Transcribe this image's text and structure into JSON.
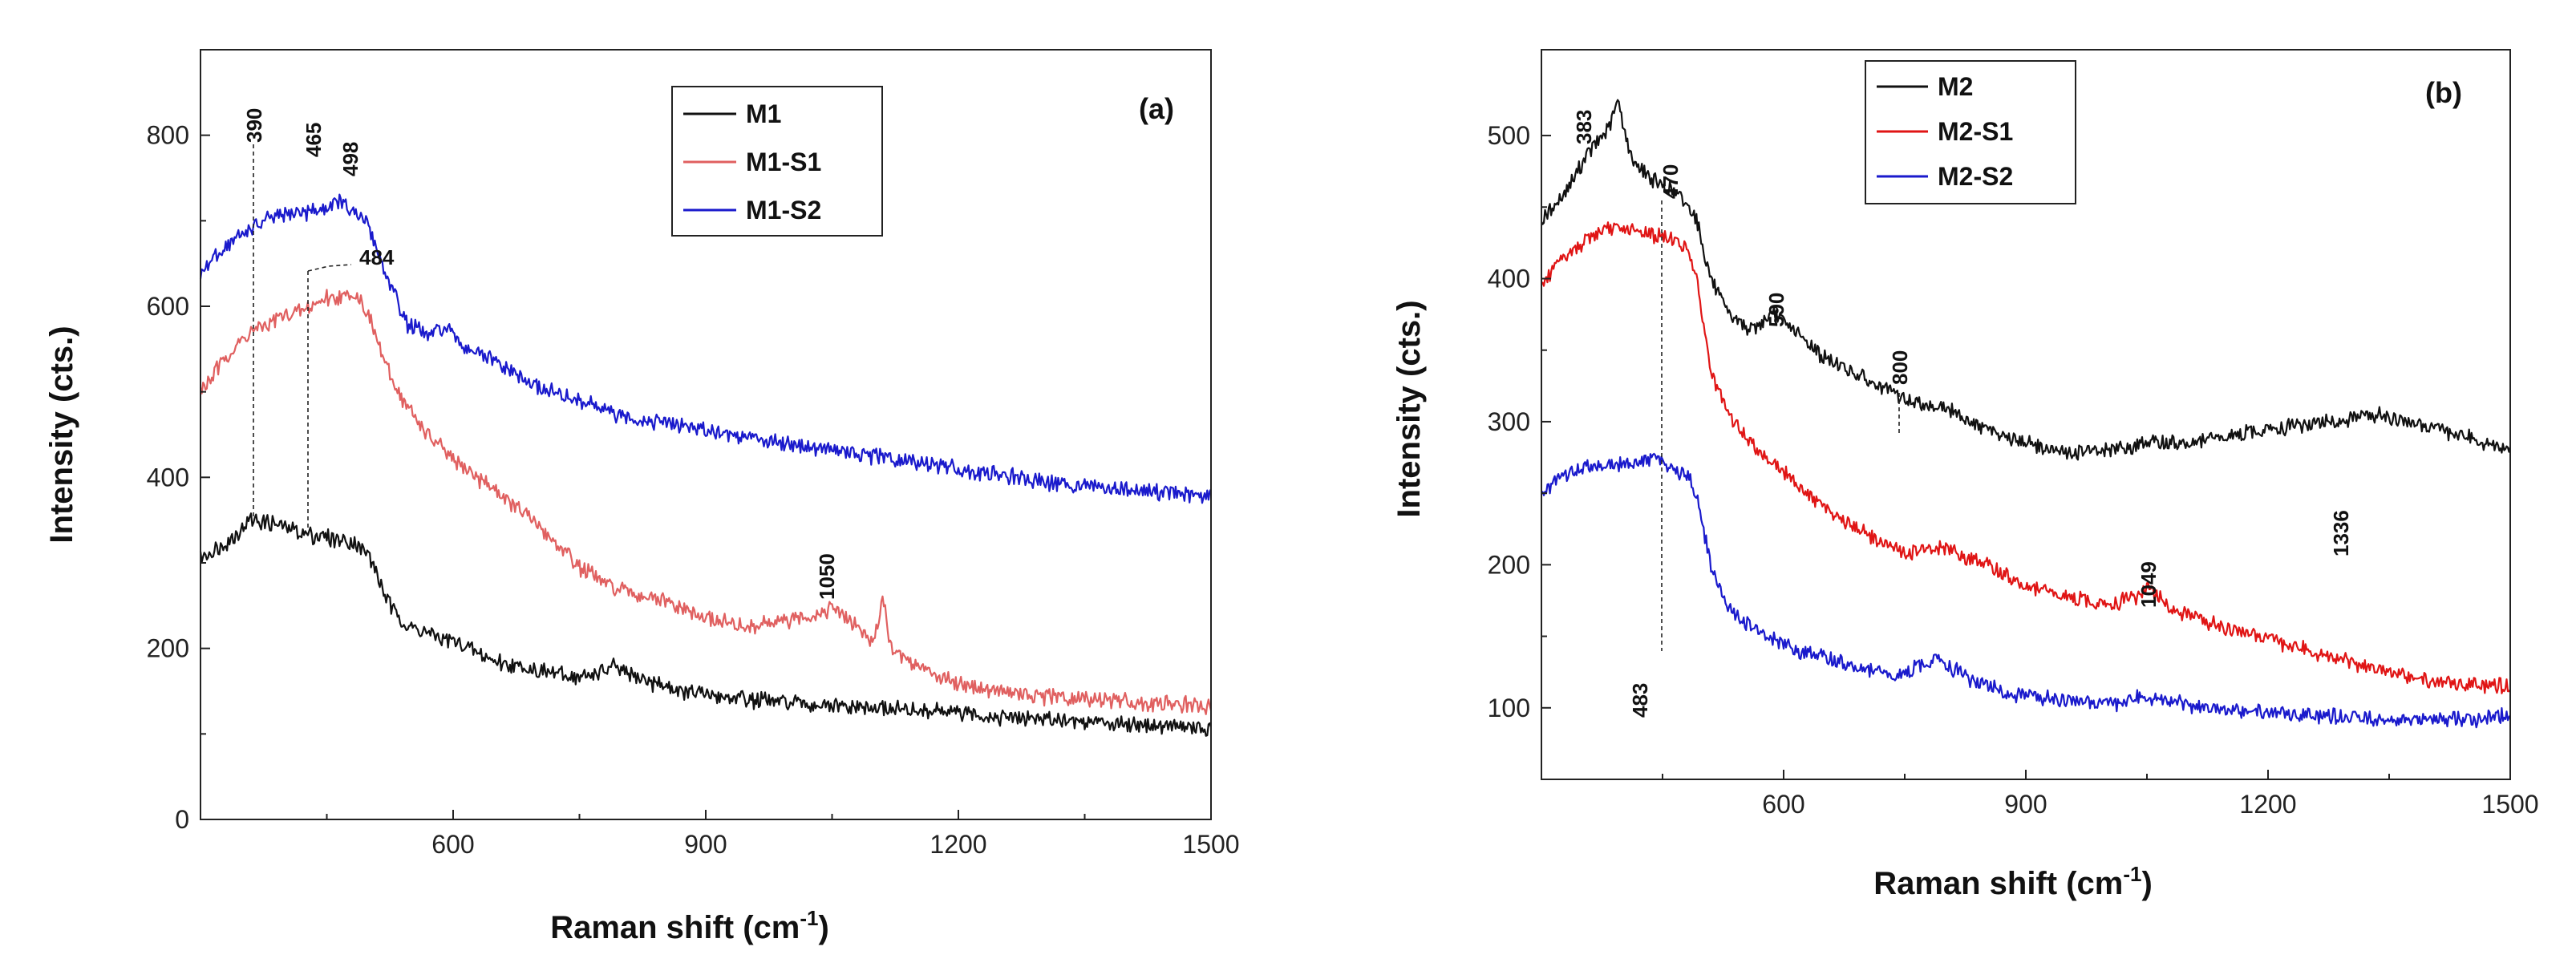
{
  "colors": {
    "black": "#111111",
    "red": "#e06060",
    "blue": "#1a1acc",
    "red_b": "#e01515"
  },
  "chart_data": [
    {
      "type": "line",
      "panel_label": "(a)",
      "xlabel": "Raman shift (cm",
      "xlabel_sup": "-1",
      "xlabel_close": ")",
      "ylabel": "Intensity (cts.)",
      "xlim": [
        300,
        1500
      ],
      "ylim": [
        0,
        900
      ],
      "x_ticks": [
        600,
        900,
        1200,
        1500
      ],
      "y_ticks": [
        0,
        200,
        400,
        600,
        800
      ],
      "series": [
        {
          "name": "M1",
          "color": "#111111",
          "points": [
            [
              300,
              305
            ],
            [
              340,
              330
            ],
            [
              360,
              352
            ],
            [
              390,
              345
            ],
            [
              420,
              335
            ],
            [
              450,
              330
            ],
            [
              480,
              325
            ],
            [
              500,
              310
            ],
            [
              510,
              285
            ],
            [
              525,
              250
            ],
            [
              545,
              225
            ],
            [
              580,
              215
            ],
            [
              620,
              200
            ],
            [
              650,
              185
            ],
            [
              700,
              175
            ],
            [
              750,
              165
            ],
            [
              790,
              178
            ],
            [
              820,
              165
            ],
            [
              870,
              150
            ],
            [
              950,
              140
            ],
            [
              1050,
              132
            ],
            [
              1150,
              128
            ],
            [
              1250,
              120
            ],
            [
              1350,
              115
            ],
            [
              1450,
              110
            ],
            [
              1500,
              106
            ]
          ]
        },
        {
          "name": "M1-S1",
          "color": "#e06060",
          "points": [
            [
              300,
              500
            ],
            [
              330,
              540
            ],
            [
              360,
              570
            ],
            [
              390,
              585
            ],
            [
              420,
              595
            ],
            [
              450,
              610
            ],
            [
              470,
              612
            ],
            [
              484,
              615
            ],
            [
              495,
              600
            ],
            [
              505,
              575
            ],
            [
              520,
              530
            ],
            [
              540,
              490
            ],
            [
              570,
              450
            ],
            [
              600,
              420
            ],
            [
              650,
              385
            ],
            [
              700,
              345
            ],
            [
              750,
              295
            ],
            [
              790,
              270
            ],
            [
              850,
              255
            ],
            [
              900,
              235
            ],
            [
              950,
              225
            ],
            [
              1000,
              232
            ],
            [
              1030,
              240
            ],
            [
              1050,
              248
            ],
            [
              1075,
              230
            ],
            [
              1100,
              205
            ],
            [
              1110,
              262
            ],
            [
              1120,
              200
            ],
            [
              1160,
              175
            ],
            [
              1200,
              160
            ],
            [
              1250,
              150
            ],
            [
              1300,
              144
            ],
            [
              1400,
              138
            ],
            [
              1500,
              132
            ]
          ]
        },
        {
          "name": "M1-S2",
          "color": "#1a1acc",
          "points": [
            [
              300,
              638
            ],
            [
              330,
              670
            ],
            [
              360,
              692
            ],
            [
              390,
              705
            ],
            [
              420,
              710
            ],
            [
              445,
              712
            ],
            [
              465,
              725
            ],
            [
              480,
              708
            ],
            [
              498,
              700
            ],
            [
              510,
              665
            ],
            [
              525,
              625
            ],
            [
              545,
              580
            ],
            [
              570,
              565
            ],
            [
              590,
              575
            ],
            [
              610,
              555
            ],
            [
              650,
              535
            ],
            [
              700,
              505
            ],
            [
              750,
              490
            ],
            [
              800,
              470
            ],
            [
              850,
              465
            ],
            [
              900,
              455
            ],
            [
              1000,
              440
            ],
            [
              1100,
              425
            ],
            [
              1200,
              410
            ],
            [
              1300,
              395
            ],
            [
              1400,
              385
            ],
            [
              1500,
              378
            ]
          ]
        }
      ],
      "legend": [
        "M1",
        "M1-S1",
        "M1-S2"
      ],
      "annotations": [
        "390",
        "465",
        "498",
        "484",
        "1050"
      ]
    },
    {
      "type": "line",
      "panel_label": "(b)",
      "xlabel": "Raman shift (cm",
      "xlabel_sup": "-1",
      "xlabel_close": ")",
      "ylabel": "Intensity (cts.)",
      "xlim": [
        300,
        1500
      ],
      "ylim": [
        50,
        560
      ],
      "x_ticks": [
        600,
        900,
        1200,
        1500
      ],
      "y_ticks": [
        100,
        200,
        300,
        400,
        500
      ],
      "series": [
        {
          "name": "M2",
          "color": "#111111",
          "points": [
            [
              300,
              440
            ],
            [
              330,
              460
            ],
            [
              355,
              485
            ],
            [
              383,
              505
            ],
            [
              395,
              525
            ],
            [
              410,
              485
            ],
            [
              440,
              468
            ],
            [
              470,
              458
            ],
            [
              490,
              445
            ],
            [
              510,
              400
            ],
            [
              530,
              375
            ],
            [
              560,
              365
            ],
            [
              590,
              375
            ],
            [
              620,
              360
            ],
            [
              650,
              345
            ],
            [
              700,
              330
            ],
            [
              750,
              315
            ],
            [
              800,
              310
            ],
            [
              850,
              295
            ],
            [
              900,
              285
            ],
            [
              950,
              278
            ],
            [
              1000,
              280
            ],
            [
              1050,
              285
            ],
            [
              1100,
              285
            ],
            [
              1150,
              290
            ],
            [
              1200,
              295
            ],
            [
              1250,
              298
            ],
            [
              1300,
              302
            ],
            [
              1336,
              305
            ],
            [
              1380,
              298
            ],
            [
              1430,
              292
            ],
            [
              1500,
              280
            ]
          ]
        },
        {
          "name": "M2-S1",
          "color": "#e01515",
          "points": [
            [
              300,
              395
            ],
            [
              330,
              415
            ],
            [
              360,
              430
            ],
            [
              390,
              435
            ],
            [
              430,
              432
            ],
            [
              460,
              428
            ],
            [
              483,
              420
            ],
            [
              495,
              390
            ],
            [
              510,
              335
            ],
            [
              530,
              305
            ],
            [
              560,
              285
            ],
            [
              600,
              265
            ],
            [
              650,
              240
            ],
            [
              700,
              222
            ],
            [
              750,
              208
            ],
            [
              800,
              212
            ],
            [
              850,
              200
            ],
            [
              900,
              185
            ],
            [
              950,
              178
            ],
            [
              1000,
              172
            ],
            [
              1040,
              178
            ],
            [
              1049,
              185
            ],
            [
              1075,
              172
            ],
            [
              1100,
              165
            ],
            [
              1150,
              155
            ],
            [
              1200,
              148
            ],
            [
              1300,
              132
            ],
            [
              1400,
              118
            ],
            [
              1500,
              115
            ]
          ]
        },
        {
          "name": "M2-S2",
          "color": "#1a1acc",
          "points": [
            [
              300,
              250
            ],
            [
              330,
              262
            ],
            [
              360,
              270
            ],
            [
              400,
              270
            ],
            [
              440,
              275
            ],
            [
              470,
              265
            ],
            [
              483,
              262
            ],
            [
              495,
              240
            ],
            [
              510,
              200
            ],
            [
              530,
              170
            ],
            [
              570,
              152
            ],
            [
              620,
              140
            ],
            [
              680,
              130
            ],
            [
              740,
              122
            ],
            [
              790,
              135
            ],
            [
              830,
              120
            ],
            [
              880,
              110
            ],
            [
              950,
              105
            ],
            [
              1000,
              102
            ],
            [
              1050,
              108
            ],
            [
              1100,
              102
            ],
            [
              1150,
              98
            ],
            [
              1250,
              95
            ],
            [
              1350,
              92
            ],
            [
              1450,
              92
            ],
            [
              1500,
              95
            ]
          ]
        }
      ],
      "legend": [
        "M2",
        "M2-S1",
        "M2-S2"
      ],
      "annotations": [
        "383",
        "470",
        "590",
        "800",
        "1336",
        "1049",
        "483"
      ]
    }
  ]
}
